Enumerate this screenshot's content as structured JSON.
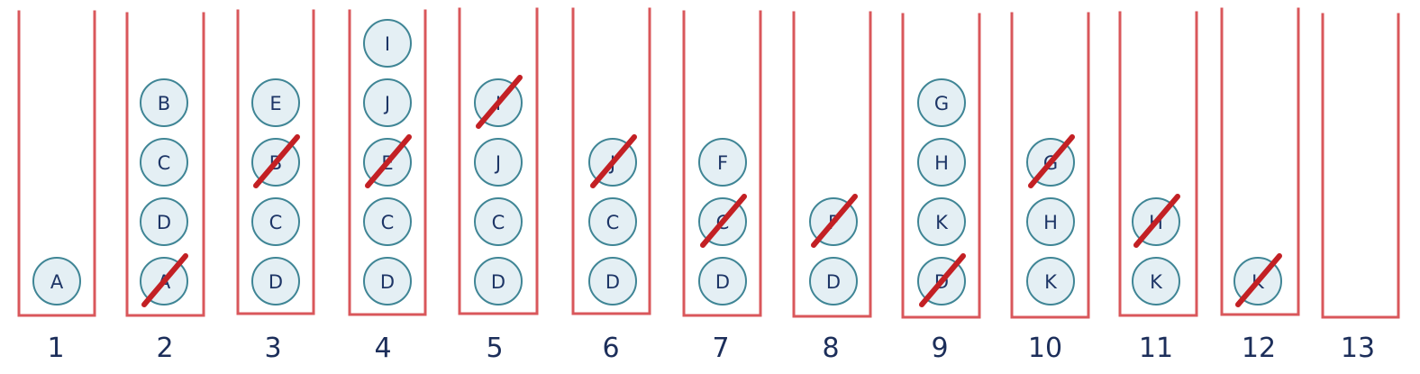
{
  "colors": {
    "container": "#d9575b",
    "ball_fill": "#e4eff4",
    "ball_stroke": "#3f8595",
    "letter": "#1d3566",
    "number": "#1c2e5a",
    "strike": "#c32024"
  },
  "stacks": [
    {
      "label": "1",
      "balls": [
        {
          "letter": "A",
          "crossed": false
        }
      ]
    },
    {
      "label": "2",
      "balls": [
        {
          "letter": "A",
          "crossed": true
        },
        {
          "letter": "D",
          "crossed": false
        },
        {
          "letter": "C",
          "crossed": false
        },
        {
          "letter": "B",
          "crossed": false
        }
      ]
    },
    {
      "label": "3",
      "balls": [
        {
          "letter": "D",
          "crossed": false
        },
        {
          "letter": "C",
          "crossed": false
        },
        {
          "letter": "B",
          "crossed": true
        },
        {
          "letter": "E",
          "crossed": false
        }
      ]
    },
    {
      "label": "4",
      "balls": [
        {
          "letter": "D",
          "crossed": false
        },
        {
          "letter": "C",
          "crossed": false
        },
        {
          "letter": "E",
          "crossed": true
        },
        {
          "letter": "J",
          "crossed": false
        },
        {
          "letter": "I",
          "crossed": false
        }
      ]
    },
    {
      "label": "5",
      "balls": [
        {
          "letter": "D",
          "crossed": false
        },
        {
          "letter": "C",
          "crossed": false
        },
        {
          "letter": "J",
          "crossed": false
        },
        {
          "letter": "I",
          "crossed": true
        }
      ]
    },
    {
      "label": "6",
      "balls": [
        {
          "letter": "D",
          "crossed": false
        },
        {
          "letter": "C",
          "crossed": false
        },
        {
          "letter": "J",
          "crossed": true
        }
      ]
    },
    {
      "label": "7",
      "balls": [
        {
          "letter": "D",
          "crossed": false
        },
        {
          "letter": "C",
          "crossed": true
        },
        {
          "letter": "F",
          "crossed": false
        }
      ]
    },
    {
      "label": "8",
      "balls": [
        {
          "letter": "D",
          "crossed": false
        },
        {
          "letter": "F",
          "crossed": true
        }
      ]
    },
    {
      "label": "9",
      "balls": [
        {
          "letter": "D",
          "crossed": true
        },
        {
          "letter": "K",
          "crossed": false
        },
        {
          "letter": "H",
          "crossed": false
        },
        {
          "letter": "G",
          "crossed": false
        }
      ]
    },
    {
      "label": "10",
      "balls": [
        {
          "letter": "K",
          "crossed": false
        },
        {
          "letter": "H",
          "crossed": false
        },
        {
          "letter": "G",
          "crossed": true
        }
      ]
    },
    {
      "label": "11",
      "balls": [
        {
          "letter": "K",
          "crossed": false
        },
        {
          "letter": "H",
          "crossed": true
        }
      ]
    },
    {
      "label": "12",
      "balls": [
        {
          "letter": "K",
          "crossed": true
        }
      ]
    },
    {
      "label": "13",
      "balls": []
    }
  ]
}
